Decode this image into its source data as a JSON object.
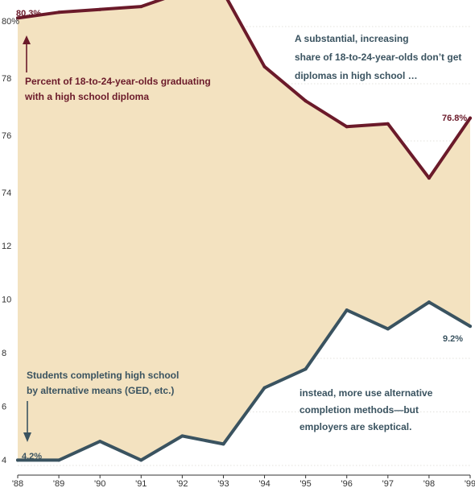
{
  "chart_data": {
    "type": "line",
    "x": [
      "'88",
      "'89",
      "'90",
      "'91",
      "'92",
      "'93",
      "'94",
      "'95",
      "'96",
      "'97",
      "'98",
      "'99"
    ],
    "y_tick_labels": [
      "4",
      "6",
      "8",
      "10",
      "12",
      "74",
      "76",
      "78",
      "80%"
    ],
    "series": [
      {
        "name": "Percent of 18-to-24-year-olds graduating with a high school diploma",
        "values": [
          80.3,
          80.5,
          80.6,
          80.7,
          81.2,
          81.2,
          78.6,
          77.4,
          76.5,
          76.6,
          74.7,
          76.8
        ]
      },
      {
        "name": "Students completing high school by alternative means (GED, etc.)",
        "values": [
          4.2,
          4.2,
          4.9,
          4.2,
          5.1,
          4.8,
          6.9,
          7.6,
          9.8,
          9.1,
          10.1,
          9.2
        ]
      }
    ],
    "end_labels": {
      "diploma_start": "80.3%",
      "diploma_end": "76.8%",
      "alt_start": "4.2%",
      "alt_end": "9.2%"
    },
    "annotations": {
      "diploma_line1": "Percent of 18-to-24-year-olds graduating",
      "diploma_line2": "with a high school diploma",
      "alt_line1": "Students completing high school",
      "alt_line2": "by alternative means (GED, etc.)",
      "top_right_1": "A substantial, increasing",
      "top_right_2": "share of 18-to-24-year-olds don’t get",
      "top_right_3": "diplomas in high school …",
      "bottom_right_1": "instead, more use alternative",
      "bottom_right_2": "completion methods—but",
      "bottom_right_3": "employers are skeptical."
    },
    "colors": {
      "diploma": "#6b1a2a",
      "alternative": "#3a5360",
      "fill": "#f3e2c0"
    },
    "grid": true
  }
}
